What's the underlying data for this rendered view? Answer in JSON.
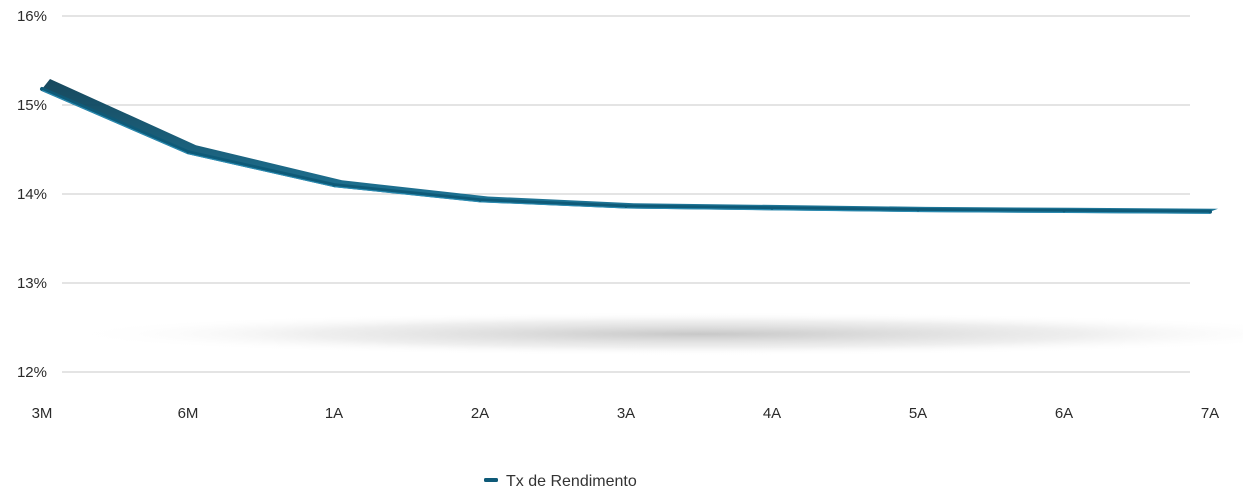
{
  "chart_data": {
    "type": "line",
    "title": "",
    "xlabel": "",
    "ylabel": "",
    "categories": [
      "3M",
      "6M",
      "1A",
      "2A",
      "3A",
      "4A",
      "5A",
      "6A",
      "7A"
    ],
    "ylim": [
      12,
      16
    ],
    "y_ticks": [
      "12%",
      "13%",
      "14%",
      "15%",
      "16%"
    ],
    "y_tick_values": [
      12,
      13,
      14,
      15,
      16
    ],
    "grid": "horizontal",
    "legend_position": "bottom-center",
    "series": [
      {
        "name": "Tx de Rendimento",
        "color": "#0e5a78",
        "values": [
          15.18,
          14.47,
          14.1,
          13.93,
          13.86,
          13.84,
          13.82,
          13.81,
          13.8
        ]
      }
    ]
  }
}
